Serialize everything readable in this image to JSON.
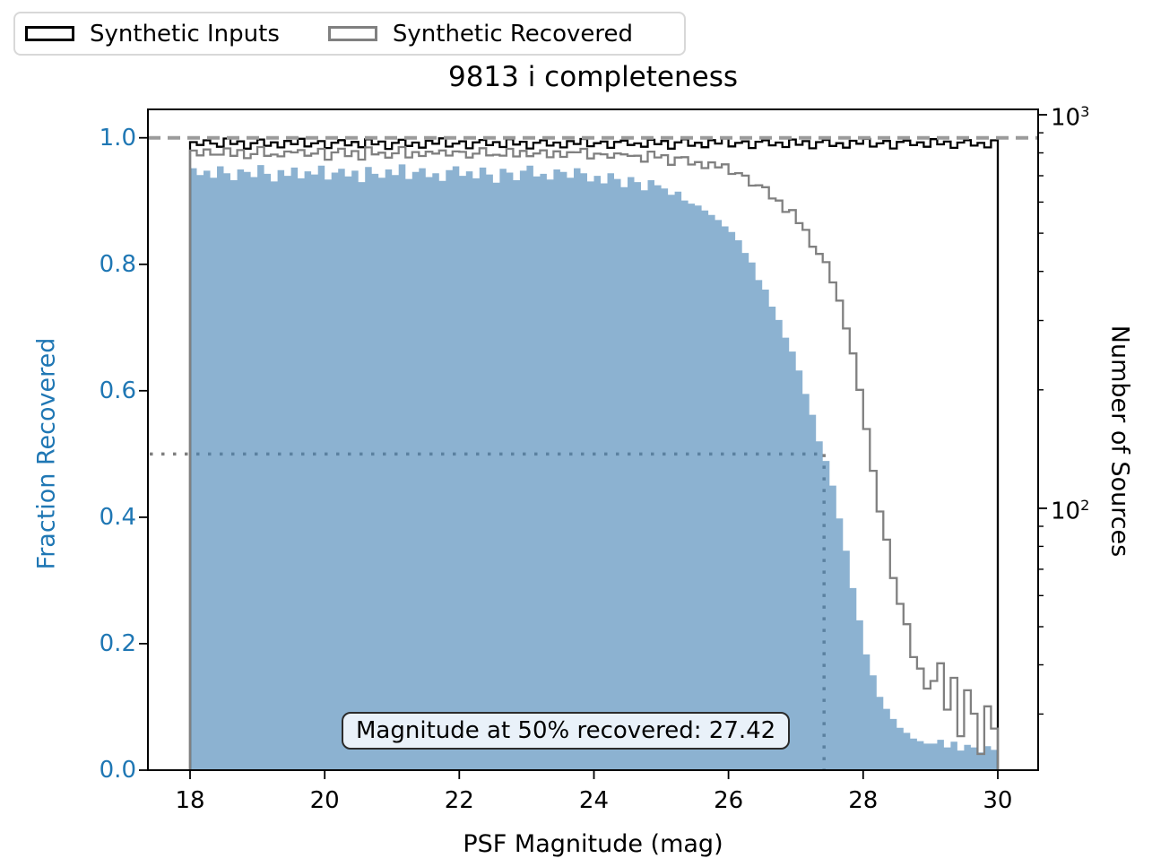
{
  "legend": {
    "items": [
      {
        "label": "Synthetic Inputs",
        "color": "#000000"
      },
      {
        "label": "Synthetic Recovered",
        "color": "#808080"
      }
    ]
  },
  "annotation": {
    "text": "Magnitude at 50% recovered: 27.42"
  },
  "axes": {
    "x": {
      "tick_labels": [
        "18",
        "20",
        "22",
        "24",
        "26",
        "28",
        "30"
      ],
      "tick_values": [
        18,
        20,
        22,
        24,
        26,
        28,
        30
      ]
    },
    "y_left": {
      "tick_labels": [
        "0.0",
        "0.2",
        "0.4",
        "0.6",
        "0.8",
        "1.0"
      ],
      "tick_values": [
        0.0,
        0.2,
        0.4,
        0.6,
        0.8,
        1.0
      ]
    },
    "y_right": {
      "major_ticks": [
        {
          "base": "10",
          "exp": "2",
          "value": 100
        },
        {
          "base": "10",
          "exp": "3",
          "value": 1000
        }
      ],
      "minor_tick_values": [
        30,
        40,
        50,
        60,
        70,
        80,
        90,
        200,
        300,
        400,
        500,
        600,
        700,
        800,
        900
      ]
    }
  },
  "chart_data": {
    "type": "histogram-step-and-stepfilled",
    "title": "9813 i completeness",
    "xlabel": "PSF Magnitude (mag)",
    "ylabel_left": "Fraction Recovered",
    "ylabel_right": "Number of Sources",
    "xlim": [
      17.374,
      30.6
    ],
    "ylim_fraction": [
      0,
      1.045
    ],
    "ylim_counts": [
      21.6,
      1032
    ],
    "right_axis_log": true,
    "x_bin_edges": {
      "start": 18.0,
      "width": 0.1,
      "count": 120
    },
    "magnitude_at_50pct": 27.42,
    "reference_lines": {
      "dashed_fraction_y": 1.0,
      "dotted_fraction_y": 0.5,
      "dotted_x_mag": 27.42
    },
    "colors": {
      "inputs_line": "#000000",
      "recovered_line": "#808080",
      "fraction_fill": "rgba(70,130,180,0.62)",
      "dashed_line": "#9b9b9b",
      "dotted_line": "#7f7f7f",
      "left_axis_text": "#1f77b4"
    },
    "series": [
      {
        "name": "Synthetic Inputs",
        "axis": "right",
        "style": "step",
        "counts": [
          852,
          838,
          861,
          845,
          829,
          870,
          843,
          856,
          820,
          847,
          865,
          834,
          851,
          826,
          858,
          842,
          869,
          831,
          846,
          857,
          823,
          849,
          862,
          836,
          853,
          827,
          866,
          841,
          855,
          819,
          848,
          864,
          833,
          850,
          825,
          859,
          844,
          871,
          830,
          845,
          856,
          822,
          851,
          863,
          837,
          852,
          828,
          867,
          840,
          854,
          821,
          849,
          861,
          835,
          850,
          826,
          857,
          843,
          868,
          832,
          847,
          855,
          824,
          853,
          860,
          838,
          846,
          829,
          864,
          842,
          858,
          820,
          851,
          866,
          834,
          849,
          827,
          862,
          845,
          870,
          831,
          848,
          856,
          823,
          854,
          861,
          836,
          850,
          828,
          865,
          839,
          857,
          822,
          852,
          863,
          833,
          847,
          825,
          859,
          844,
          869,
          830,
          846,
          858,
          821,
          853,
          860,
          837,
          851,
          829,
          867,
          841,
          855,
          824,
          850,
          862,
          835,
          848,
          826,
          861
        ]
      },
      {
        "name": "Synthetic Recovered",
        "axis": "right",
        "style": "step",
        "derivation": "inputs_counts * fraction_recovered per bin"
      },
      {
        "name": "Fraction Recovered",
        "axis": "left",
        "style": "stepfilled",
        "values": [
          0.952,
          0.941,
          0.948,
          0.937,
          0.955,
          0.944,
          0.933,
          0.95,
          0.946,
          0.938,
          0.957,
          0.943,
          0.931,
          0.949,
          0.94,
          0.953,
          0.936,
          0.947,
          0.942,
          0.956,
          0.934,
          0.945,
          0.951,
          0.939,
          0.948,
          0.93,
          0.954,
          0.943,
          0.937,
          0.95,
          0.941,
          0.958,
          0.935,
          0.946,
          0.952,
          0.938,
          0.944,
          0.932,
          0.949,
          0.955,
          0.94,
          0.947,
          0.936,
          0.953,
          0.942,
          0.929,
          0.951,
          0.945,
          0.933,
          0.948,
          0.956,
          0.939,
          0.943,
          0.934,
          0.95,
          0.946,
          0.937,
          0.952,
          0.944,
          0.931,
          0.94,
          0.928,
          0.944,
          0.935,
          0.922,
          0.938,
          0.93,
          0.917,
          0.933,
          0.925,
          0.92,
          0.91,
          0.915,
          0.901,
          0.896,
          0.893,
          0.885,
          0.878,
          0.87,
          0.86,
          0.851,
          0.838,
          0.818,
          0.803,
          0.775,
          0.76,
          0.733,
          0.712,
          0.684,
          0.662,
          0.632,
          0.595,
          0.562,
          0.52,
          0.489,
          0.45,
          0.398,
          0.347,
          0.288,
          0.237,
          0.183,
          0.15,
          0.116,
          0.097,
          0.081,
          0.067,
          0.059,
          0.05,
          0.046,
          0.042,
          0.042,
          0.048,
          0.036,
          0.045,
          0.031,
          0.04,
          0.036,
          0.028,
          0.038,
          0.032
        ]
      }
    ]
  }
}
